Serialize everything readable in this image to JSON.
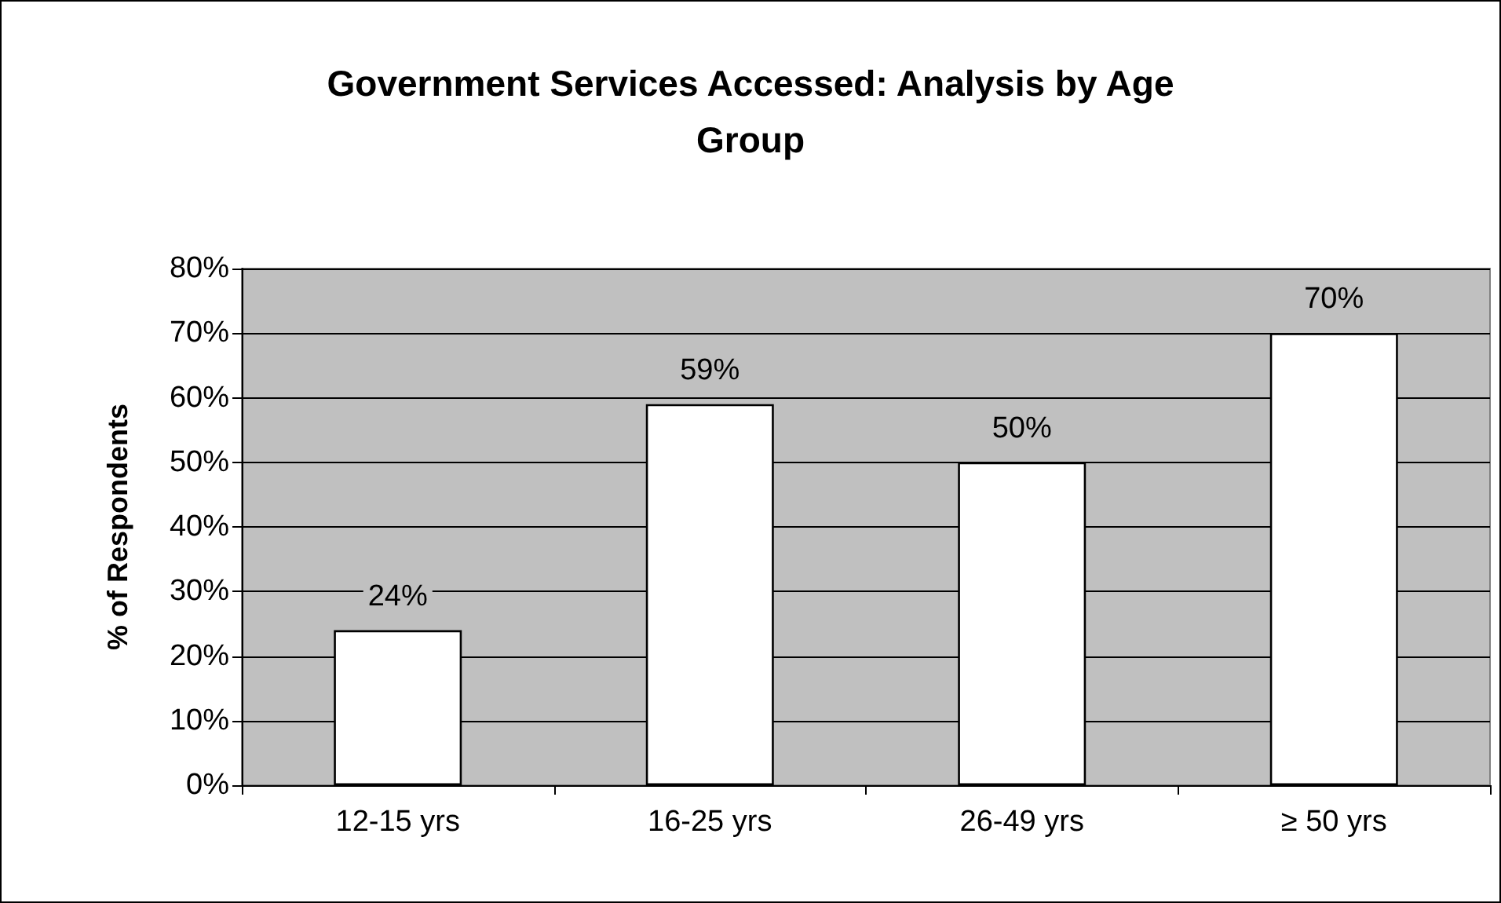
{
  "chart_data": {
    "type": "bar",
    "title": "Government Services Accessed: Analysis by Age Group",
    "ylabel": "% of Respondents",
    "categories": [
      "12-15 yrs",
      "16-25 yrs",
      "26-49 yrs",
      "≥ 50 yrs"
    ],
    "values": [
      24,
      59,
      50,
      70
    ],
    "value_labels": [
      "24%",
      "59%",
      "50%",
      "70%"
    ],
    "color": "#ffffff",
    "ylim": [
      0,
      80
    ],
    "yticks": [
      {
        "value": 0,
        "label": "0%"
      },
      {
        "value": 10,
        "label": "10%"
      },
      {
        "value": 20,
        "label": "20%"
      },
      {
        "value": 30,
        "label": "30%"
      },
      {
        "value": 40,
        "label": "40%"
      },
      {
        "value": 50,
        "label": "50%"
      },
      {
        "value": 60,
        "label": "60%"
      },
      {
        "value": 70,
        "label": "70%"
      },
      {
        "value": 80,
        "label": "80%"
      }
    ],
    "grid": "y"
  }
}
